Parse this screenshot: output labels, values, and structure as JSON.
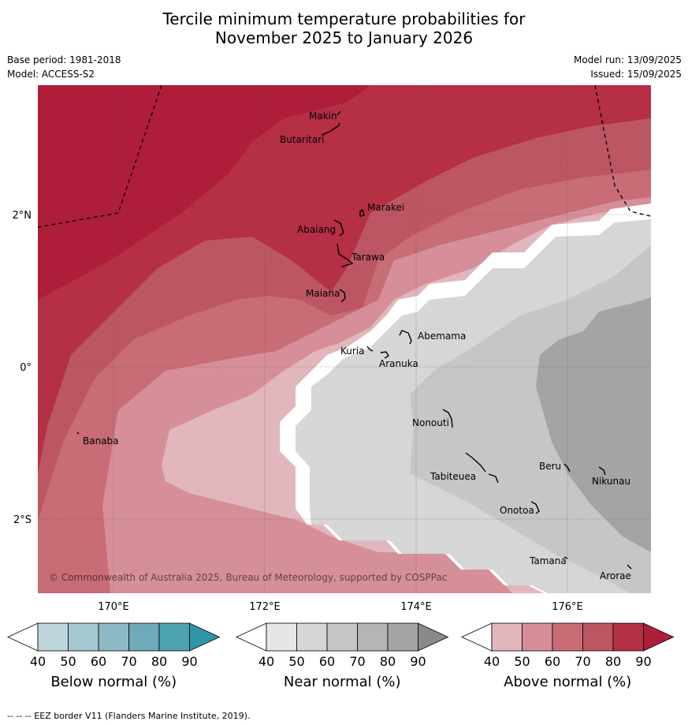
{
  "title_line1": "Tercile minimum temperature probabilities for",
  "title_line2": "November 2025 to January 2026",
  "base_period": "Base period: 1981-2018",
  "model": "Model: ACCESS-S2",
  "model_run": "Model run: 13/09/2025",
  "issued": "Issued: 15/09/2025",
  "copyright": "© Commonwealth of Australia 2025, Bureau of Meteorology, supported by COSPPac",
  "lat_labels": [
    "2°N",
    "0°",
    "2°S"
  ],
  "lon_labels": [
    "170°E",
    "172°E",
    "174°E",
    "176°E"
  ],
  "places": [
    "Makin",
    "Butaritari",
    "Marakei",
    "Abaiang",
    "Tarawa",
    "Maiana",
    "Abemama",
    "Kuria",
    "Aranuka",
    "Banaba",
    "Nonouti",
    "Beru",
    "Nikunau",
    "Tabiteuea",
    "Onotoa",
    "Tamana",
    "Arorae"
  ],
  "colorbars": [
    {
      "label": "Below normal (%)",
      "ticks": [
        "40",
        "50",
        "60",
        "70",
        "80",
        "90"
      ],
      "colors": [
        "#ffffff",
        "#bdd5dc",
        "#a6c8d0",
        "#8cb9c4",
        "#6eaab7",
        "#4ea3b1",
        "#2f95a8"
      ]
    },
    {
      "label": "Near normal (%)",
      "ticks": [
        "40",
        "50",
        "60",
        "70",
        "80",
        "90"
      ],
      "colors": [
        "#ffffff",
        "#e6e6e6",
        "#d6d6d6",
        "#c6c6c6",
        "#b5b5b5",
        "#a4a4a4",
        "#8a8a8a"
      ]
    },
    {
      "label": "Above normal (%)",
      "ticks": [
        "40",
        "50",
        "60",
        "70",
        "80",
        "90"
      ],
      "colors": [
        "#ffffff",
        "#e1b7bd",
        "#d68f98",
        "#c86c76",
        "#bd5663",
        "#b52f45",
        "#ae1d3a"
      ]
    }
  ],
  "footer": "--  --  -- EEZ border V11 (Flanders Marine Institute, 2019)."
}
